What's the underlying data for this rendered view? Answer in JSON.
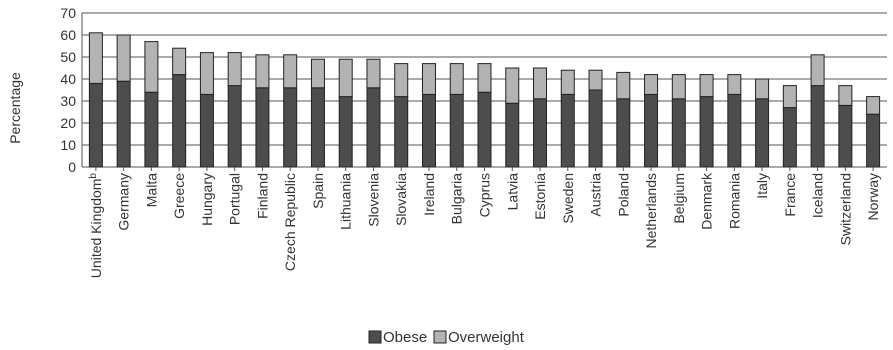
{
  "chart_data": {
    "type": "bar",
    "stacked": true,
    "ylabel": "Percentage",
    "ylim": [
      0,
      70
    ],
    "yticks": [
      0,
      10,
      20,
      30,
      40,
      50,
      60,
      70
    ],
    "grid": true,
    "legend_position": "bottom-center",
    "categories": [
      "United Kingdom",
      "Germany",
      "Malta",
      "Greece",
      "Hungary",
      "Portugal",
      "Finland",
      "Czech Republic",
      "Spain",
      "Lithuania",
      "Slovenia",
      "Slovakia",
      "Ireland",
      "Bulgaria",
      "Cyprus",
      "Latvia",
      "Estonia",
      "Sweden",
      "Austria",
      "Poland",
      "Netherlands",
      "Belgium",
      "Denmark",
      "Romania",
      "Italy",
      "France",
      "Iceland",
      "Switzerland",
      "Norway"
    ],
    "category_superscripts": [
      "b",
      "",
      "",
      "",
      "",
      "",
      "",
      "",
      "",
      "",
      "",
      "",
      "",
      "",
      "",
      "",
      "",
      "",
      "",
      "",
      "",
      "",
      "",
      "",
      "",
      "",
      "",
      "",
      ""
    ],
    "series": [
      {
        "name": "Obese",
        "color": "#4d4d4d",
        "values": [
          38,
          39,
          34,
          42,
          33,
          37,
          36,
          36,
          36,
          32,
          36,
          32,
          33,
          33,
          34,
          29,
          31,
          33,
          35,
          31,
          33,
          31,
          32,
          33,
          31,
          27,
          37,
          28,
          24
        ]
      },
      {
        "name": "Overweight",
        "color": "#b3b3b3",
        "values": [
          23,
          21,
          23,
          12,
          19,
          15,
          15,
          15,
          13,
          17,
          13,
          15,
          14,
          14,
          13,
          16,
          14,
          11,
          9,
          12,
          9,
          11,
          10,
          9,
          9,
          10,
          14,
          9,
          8
        ]
      }
    ]
  }
}
